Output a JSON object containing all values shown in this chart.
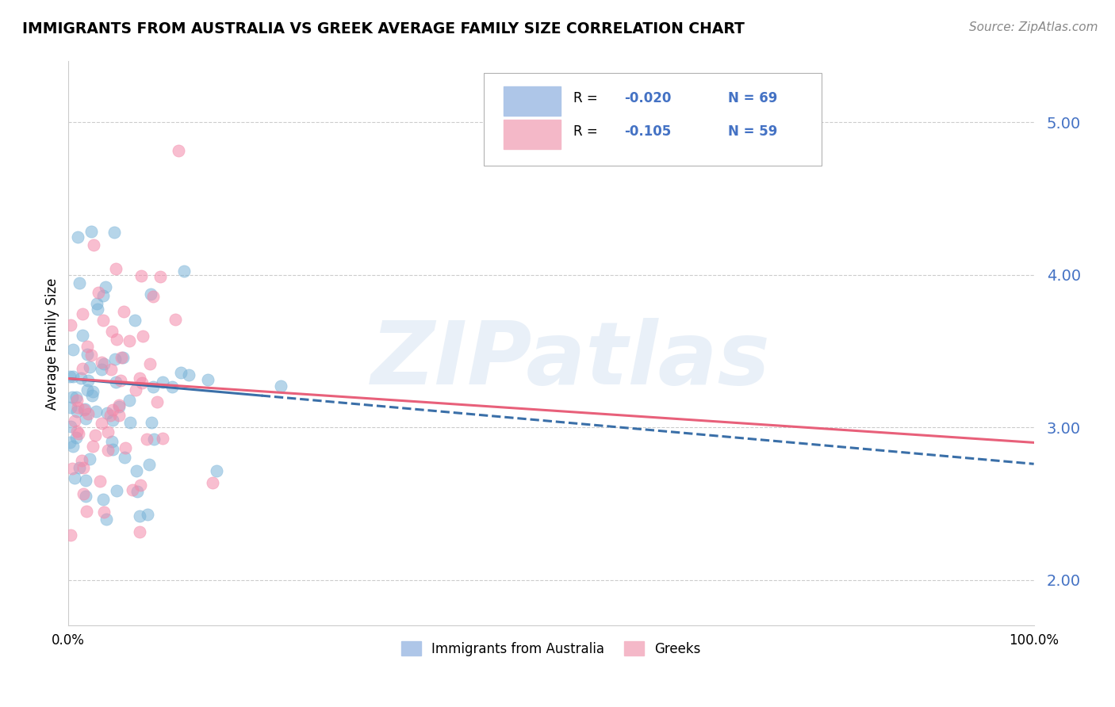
{
  "title": "IMMIGRANTS FROM AUSTRALIA VS GREEK AVERAGE FAMILY SIZE CORRELATION CHART",
  "source": "Source: ZipAtlas.com",
  "ylabel": "Average Family Size",
  "yticks": [
    2.0,
    3.0,
    4.0,
    5.0
  ],
  "ylim": [
    1.7,
    5.4
  ],
  "xlim": [
    0.0,
    100.0
  ],
  "watermark": "ZIPatlas",
  "australia_color": "#7ab4d8",
  "greeks_color": "#f48aaa",
  "australia_line_color": "#3a6fa8",
  "greeks_line_color": "#e8607a",
  "R_australia": -0.02,
  "R_greeks": -0.105,
  "N_australia": 69,
  "N_greeks": 59,
  "r_color": "#4472c4",
  "legend_box_color_aus": "#aec6e8",
  "legend_box_color_grk": "#f4b8c8",
  "aus_trend_start": 3.32,
  "aus_trend_end": 2.76,
  "grk_trend_start": 3.32,
  "grk_trend_end": 2.9
}
